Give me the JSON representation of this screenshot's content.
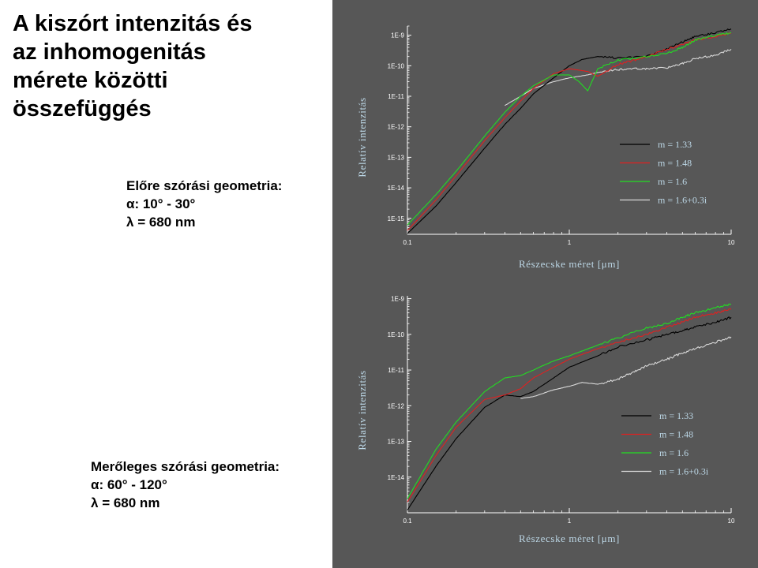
{
  "title_lines": [
    "A kiszórt intenzitás és",
    "az  inhomogenitás",
    "mérete közötti",
    "összefüggés"
  ],
  "geometry_forward": {
    "heading": "Előre szórási geometria:",
    "alpha_symbol": "α",
    "alpha_text": ": 10° - 30°",
    "lambda_symbol": "λ",
    "lambda_text": " = 680 nm"
  },
  "geometry_perpendicular": {
    "heading": "Merőleges szórási geometria:",
    "alpha_symbol": "α",
    "alpha_text": ": 60° - 120°",
    "lambda_symbol": "λ",
    "lambda_text": " = 680 nm"
  },
  "colors": {
    "panel_bg": "#575757",
    "axis": "#ffffff",
    "label": "#bcd7e6",
    "m133": "#000000",
    "m148": "#e02020",
    "m16": "#22dd22",
    "m16i": "#d8d8d8"
  },
  "chart_data": [
    {
      "type": "line",
      "xlabel": "Részecske méret [μm]",
      "ylabel": "Relatív intenzitás",
      "x_scale": "log",
      "y_scale": "log",
      "xlim": [
        0.1,
        10
      ],
      "ylim": [
        3e-16,
        2e-09
      ],
      "x_ticks": [
        "0.1",
        "1",
        "10"
      ],
      "y_ticks": [
        "1E-9",
        "1E-10",
        "1E-11",
        "1E-12",
        "1E-13",
        "1E-14",
        "1E-15"
      ],
      "legend_position": "lower-right",
      "series": [
        {
          "name": "m = 1.33",
          "color": "#000000",
          "x": [
            0.1,
            0.15,
            0.2,
            0.3,
            0.4,
            0.5,
            0.6,
            0.8,
            1.0,
            1.2,
            1.5,
            2,
            3,
            4,
            5,
            6,
            8,
            10
          ],
          "y": [
            3.2e-16,
            2.5e-15,
            1.5e-14,
            2e-13,
            1.2e-12,
            4e-12,
            1.2e-11,
            4e-11,
            1e-10,
            1.6e-10,
            2e-10,
            1.8e-10,
            2e-10,
            3.5e-10,
            6e-10,
            9e-10,
            1.2e-09,
            1.6e-09
          ]
        },
        {
          "name": "m = 1.48",
          "color": "#e02020",
          "x": [
            0.1,
            0.15,
            0.2,
            0.3,
            0.4,
            0.5,
            0.6,
            0.8,
            1.0,
            1.3,
            1.5,
            2,
            2.5,
            3,
            4,
            5,
            6,
            8,
            10
          ],
          "y": [
            4e-16,
            4e-15,
            2.5e-14,
            3.5e-13,
            2e-12,
            7e-12,
            1.8e-11,
            5.5e-11,
            8e-11,
            6.5e-11,
            4.5e-11,
            1.1e-10,
            1.5e-10,
            2e-10,
            3.5e-10,
            5e-10,
            7e-10,
            9e-10,
            1.2e-09
          ]
        },
        {
          "name": "m = 1.6",
          "color": "#22dd22",
          "x": [
            0.1,
            0.15,
            0.2,
            0.3,
            0.4,
            0.5,
            0.6,
            0.8,
            1.0,
            1.15,
            1.3,
            1.5,
            2,
            3,
            4,
            5,
            6,
            8,
            10
          ],
          "y": [
            6e-16,
            6e-15,
            3.5e-14,
            5e-13,
            3e-12,
            1e-11,
            2.2e-11,
            5e-11,
            5e-11,
            3e-11,
            1.5e-11,
            8e-11,
            1.5e-10,
            2e-10,
            2.5e-10,
            4e-10,
            7e-10,
            1e-09,
            1.2e-09
          ]
        },
        {
          "name": "m = 1.6+0.3i",
          "color": "#d8d8d8",
          "x": [
            0.4,
            0.5,
            0.6,
            0.8,
            1.0,
            1.3,
            1.5,
            2,
            2.5,
            3,
            4,
            5,
            6,
            8,
            10
          ],
          "y": [
            5e-12,
            1e-11,
            1.8e-11,
            3e-11,
            4e-11,
            5e-11,
            6e-11,
            7.5e-11,
            8e-11,
            8e-11,
            8.5e-11,
            1.2e-10,
            1.7e-10,
            2.2e-10,
            3.5e-10
          ]
        }
      ]
    },
    {
      "type": "line",
      "xlabel": "Részecske méret [μm]",
      "ylabel": "Relatív intenzitás",
      "x_scale": "log",
      "y_scale": "log",
      "xlim": [
        0.1,
        10
      ],
      "ylim": [
        1e-15,
        1.2e-09
      ],
      "x_ticks": [
        "0.1",
        "1",
        "10"
      ],
      "y_ticks": [
        "1E-9",
        "1E-10",
        "1E-11",
        "1E-12",
        "1E-13",
        "1E-14"
      ],
      "legend_position": "lower-right",
      "series": [
        {
          "name": "m = 1.33",
          "color": "#000000",
          "x": [
            0.1,
            0.15,
            0.2,
            0.3,
            0.4,
            0.5,
            0.6,
            0.8,
            1.0,
            1.5,
            2,
            3,
            4,
            5,
            6,
            8,
            10
          ],
          "y": [
            1.2e-15,
            2e-14,
            1.2e-13,
            9e-13,
            2e-12,
            1.8e-12,
            2.5e-12,
            6e-12,
            1.2e-11,
            2.5e-11,
            4.5e-11,
            7e-11,
            1e-10,
            1.3e-10,
            1.6e-10,
            2.2e-10,
            3e-10
          ]
        },
        {
          "name": "m = 1.48",
          "color": "#e02020",
          "x": [
            0.1,
            0.15,
            0.2,
            0.3,
            0.4,
            0.5,
            0.6,
            0.8,
            1.0,
            1.5,
            2,
            3,
            4,
            5,
            6,
            8,
            10
          ],
          "y": [
            2e-15,
            4e-14,
            2.5e-13,
            1.5e-12,
            2e-12,
            3e-12,
            6e-12,
            1.2e-11,
            2e-11,
            4e-11,
            6e-11,
            1e-10,
            1.6e-10,
            2.2e-10,
            3e-10,
            4e-10,
            5e-10
          ]
        },
        {
          "name": "m = 1.6",
          "color": "#22dd22",
          "x": [
            0.1,
            0.15,
            0.2,
            0.3,
            0.4,
            0.5,
            0.6,
            0.8,
            1.0,
            1.5,
            2,
            3,
            4,
            5,
            6,
            8,
            10
          ],
          "y": [
            2.5e-15,
            6e-14,
            3.5e-13,
            2.5e-12,
            6e-12,
            7e-12,
            1e-11,
            1.8e-11,
            2.5e-11,
            5e-11,
            8e-11,
            1.5e-10,
            2e-10,
            3e-10,
            4e-10,
            5.5e-10,
            7e-10
          ]
        },
        {
          "name": "m = 1.6+0.3i",
          "color": "#d8d8d8",
          "x": [
            0.5,
            0.6,
            0.8,
            1.0,
            1.2,
            1.5,
            2,
            2.5,
            3,
            4,
            5,
            6,
            8,
            10
          ],
          "y": [
            1.6e-12,
            1.8e-12,
            2.8e-12,
            3.5e-12,
            4.5e-12,
            4e-12,
            5.5e-12,
            9e-12,
            1.3e-11,
            2e-11,
            3e-11,
            4e-11,
            6e-11,
            8.5e-11
          ]
        }
      ]
    }
  ]
}
